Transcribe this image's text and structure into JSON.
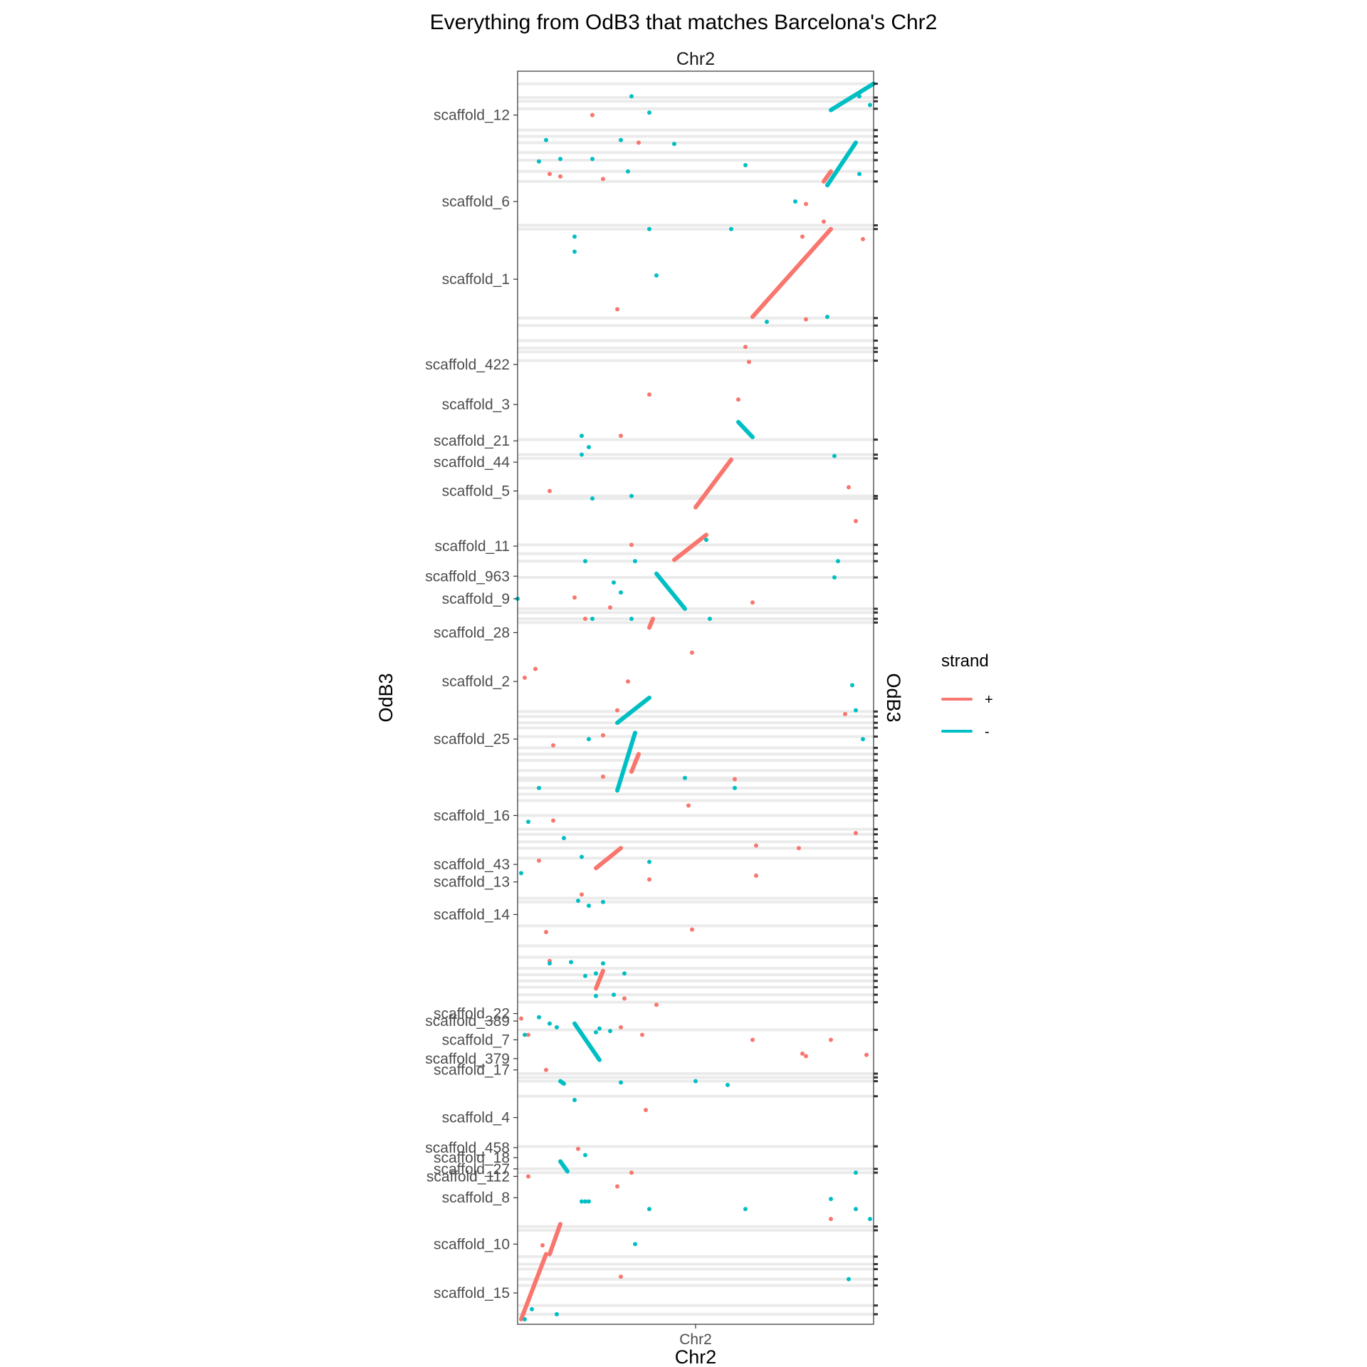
{
  "chart_data": {
    "type": "scatter",
    "title": "Everything from OdB3 that matches Barcelona's Chr2",
    "facet_label": "Chr2",
    "xlabel": "Chr2",
    "ylabel": "OdB3",
    "ylabel_secondary": "OdB3",
    "x_tick_labels": [
      "Chr2"
    ],
    "xlim": [
      0,
      1
    ],
    "ylim": [
      0,
      1
    ],
    "grid": false,
    "legend": {
      "title": "strand",
      "position": "right",
      "entries": [
        {
          "label": "+",
          "color": "#F8766D"
        },
        {
          "label": "-",
          "color": "#00BFC4"
        }
      ]
    },
    "colors": {
      "plus": "#F8766D",
      "minus": "#00BFC4",
      "band": "#EBEBEB"
    },
    "y_tick_labels": [
      {
        "label": "scaffold_12",
        "y": 0.965
      },
      {
        "label": "scaffold_6",
        "y": 0.896
      },
      {
        "label": "scaffold_1",
        "y": 0.834
      },
      {
        "label": "scaffold_422",
        "y": 0.766
      },
      {
        "label": "scaffold_3",
        "y": 0.734
      },
      {
        "label": "scaffold_21",
        "y": 0.705
      },
      {
        "label": "scaffold_44",
        "y": 0.688
      },
      {
        "label": "scaffold_5",
        "y": 0.665
      },
      {
        "label": "scaffold_11",
        "y": 0.621
      },
      {
        "label": "scaffold_963",
        "y": 0.597
      },
      {
        "label": "scaffold_9",
        "y": 0.579
      },
      {
        "label": "scaffold_28",
        "y": 0.552
      },
      {
        "label": "scaffold_2",
        "y": 0.513
      },
      {
        "label": "scaffold_25",
        "y": 0.467
      },
      {
        "label": "scaffold_16",
        "y": 0.406
      },
      {
        "label": "scaffold_43",
        "y": 0.367
      },
      {
        "label": "scaffold_13",
        "y": 0.353
      },
      {
        "label": "scaffold_14",
        "y": 0.327
      },
      {
        "label": "scaffold_22",
        "y": 0.248
      },
      {
        "label": "scaffold_389",
        "y": 0.242
      },
      {
        "label": "scaffold_7",
        "y": 0.227
      },
      {
        "label": "scaffold_379",
        "y": 0.212
      },
      {
        "label": "scaffold_17",
        "y": 0.203
      },
      {
        "label": "scaffold_4",
        "y": 0.165
      },
      {
        "label": "scaffold_458",
        "y": 0.141
      },
      {
        "label": "scaffold_18",
        "y": 0.133
      },
      {
        "label": "scaffold_27",
        "y": 0.124
      },
      {
        "label": "scaffold_112",
        "y": 0.118
      },
      {
        "label": "scaffold_8",
        "y": 0.101
      },
      {
        "label": "scaffold_10",
        "y": 0.064
      },
      {
        "label": "scaffold_15",
        "y": 0.025
      }
    ],
    "bands_y": [
      0.99,
      0.979,
      0.976,
      0.97,
      0.953,
      0.948,
      0.943,
      0.935,
      0.929,
      0.92,
      0.912,
      0.877,
      0.874,
      0.803,
      0.797,
      0.785,
      0.779,
      0.776,
      0.769,
      0.706,
      0.694,
      0.691,
      0.661,
      0.659,
      0.622,
      0.615,
      0.609,
      0.596,
      0.571,
      0.568,
      0.563,
      0.56,
      0.489,
      0.485,
      0.48,
      0.476,
      0.469,
      0.46,
      0.455,
      0.45,
      0.442,
      0.436,
      0.434,
      0.428,
      0.423,
      0.418,
      0.406,
      0.395,
      0.391,
      0.385,
      0.38,
      0.372,
      0.34,
      0.337,
      0.318,
      0.302,
      0.293,
      0.284,
      0.279,
      0.274,
      0.269,
      0.263,
      0.257,
      0.235,
      0.2,
      0.197,
      0.194,
      0.182,
      0.142,
      0.124,
      0.121,
      0.078,
      0.075,
      0.054,
      0.048,
      0.044,
      0.036,
      0.031,
      0.015,
      0.008
    ],
    "series": [
      {
        "name": "+",
        "color": "#F8766D",
        "segments": [
          {
            "x": [
              0.66,
              0.88
            ],
            "y": [
              0.804,
              0.874
            ]
          },
          {
            "x": [
              0.5,
              0.6
            ],
            "y": [
              0.652,
              0.69
            ]
          },
          {
            "x": [
              0.44,
              0.53
            ],
            "y": [
              0.61,
              0.63
            ]
          },
          {
            "x": [
              0.37,
              0.38
            ],
            "y": [
              0.556,
              0.563
            ]
          },
          {
            "x": [
              0.32,
              0.34
            ],
            "y": [
              0.441,
              0.455
            ]
          },
          {
            "x": [
              0.22,
              0.29
            ],
            "y": [
              0.364,
              0.38
            ]
          },
          {
            "x": [
              0.22,
              0.24
            ],
            "y": [
              0.268,
              0.282
            ]
          },
          {
            "x": [
              0.01,
              0.08
            ],
            "y": [
              0.004,
              0.056
            ]
          },
          {
            "x": [
              0.09,
              0.12
            ],
            "y": [
              0.056,
              0.08
            ]
          },
          {
            "x": [
              0.86,
              0.88
            ],
            "y": [
              0.912,
              0.92
            ]
          }
        ],
        "points": [
          {
            "x": 0.21,
            "y": 0.965
          },
          {
            "x": 0.34,
            "y": 0.943
          },
          {
            "x": 0.09,
            "y": 0.918
          },
          {
            "x": 0.12,
            "y": 0.916
          },
          {
            "x": 0.24,
            "y": 0.914
          },
          {
            "x": 0.81,
            "y": 0.894
          },
          {
            "x": 0.86,
            "y": 0.88
          },
          {
            "x": 0.97,
            "y": 0.866
          },
          {
            "x": 0.8,
            "y": 0.868
          },
          {
            "x": 0.28,
            "y": 0.81
          },
          {
            "x": 0.81,
            "y": 0.802
          },
          {
            "x": 0.64,
            "y": 0.78
          },
          {
            "x": 0.65,
            "y": 0.768
          },
          {
            "x": 0.37,
            "y": 0.742
          },
          {
            "x": 0.62,
            "y": 0.738
          },
          {
            "x": 0.29,
            "y": 0.709
          },
          {
            "x": 0.93,
            "y": 0.668
          },
          {
            "x": 0.09,
            "y": 0.665
          },
          {
            "x": 0.95,
            "y": 0.641
          },
          {
            "x": 0.32,
            "y": 0.622
          },
          {
            "x": 0.16,
            "y": 0.58
          },
          {
            "x": 0.66,
            "y": 0.576
          },
          {
            "x": 0.26,
            "y": 0.572
          },
          {
            "x": 0.19,
            "y": 0.563
          },
          {
            "x": 0.49,
            "y": 0.536
          },
          {
            "x": 0.05,
            "y": 0.523
          },
          {
            "x": 0.02,
            "y": 0.516
          },
          {
            "x": 0.31,
            "y": 0.513
          },
          {
            "x": 0.28,
            "y": 0.49
          },
          {
            "x": 0.92,
            "y": 0.487
          },
          {
            "x": 0.24,
            "y": 0.47
          },
          {
            "x": 0.1,
            "y": 0.462
          },
          {
            "x": 0.24,
            "y": 0.437
          },
          {
            "x": 0.61,
            "y": 0.435
          },
          {
            "x": 0.48,
            "y": 0.414
          },
          {
            "x": 0.1,
            "y": 0.402
          },
          {
            "x": 0.67,
            "y": 0.382
          },
          {
            "x": 0.95,
            "y": 0.392
          },
          {
            "x": 0.79,
            "y": 0.38
          },
          {
            "x": 0.06,
            "y": 0.37
          },
          {
            "x": 0.67,
            "y": 0.358
          },
          {
            "x": 0.37,
            "y": 0.355
          },
          {
            "x": 0.18,
            "y": 0.343
          },
          {
            "x": 0.49,
            "y": 0.315
          },
          {
            "x": 0.08,
            "y": 0.313
          },
          {
            "x": 0.09,
            "y": 0.29
          },
          {
            "x": 0.3,
            "y": 0.26
          },
          {
            "x": 0.39,
            "y": 0.255
          },
          {
            "x": 0.01,
            "y": 0.244
          },
          {
            "x": 0.29,
            "y": 0.237
          },
          {
            "x": 0.03,
            "y": 0.231
          },
          {
            "x": 0.66,
            "y": 0.227
          },
          {
            "x": 0.88,
            "y": 0.227
          },
          {
            "x": 0.35,
            "y": 0.231
          },
          {
            "x": 0.8,
            "y": 0.216
          },
          {
            "x": 0.81,
            "y": 0.214
          },
          {
            "x": 0.98,
            "y": 0.215
          },
          {
            "x": 0.08,
            "y": 0.203
          },
          {
            "x": 0.36,
            "y": 0.171
          },
          {
            "x": 0.17,
            "y": 0.14
          },
          {
            "x": 0.03,
            "y": 0.118
          },
          {
            "x": 0.32,
            "y": 0.121
          },
          {
            "x": 0.28,
            "y": 0.11
          },
          {
            "x": 0.88,
            "y": 0.084
          },
          {
            "x": 0.29,
            "y": 0.038
          },
          {
            "x": 0.07,
            "y": 0.063
          }
        ]
      },
      {
        "name": "-",
        "color": "#00BFC4",
        "segments": [
          {
            "x": [
              0.62,
              0.66
            ],
            "y": [
              0.72,
              0.708
            ]
          },
          {
            "x": [
              0.39,
              0.47
            ],
            "y": [
              0.599,
              0.571
            ]
          },
          {
            "x": [
              0.16,
              0.23
            ],
            "y": [
              0.24,
              0.211
            ]
          },
          {
            "x": [
              0.12,
              0.13
            ],
            "y": [
              0.194,
              0.192
            ]
          },
          {
            "x": [
              0.12,
              0.14
            ],
            "y": [
              0.13,
              0.122
            ]
          },
          {
            "x": [
              0.88,
              1.0
            ],
            "y": [
              0.969,
              0.99
            ]
          },
          {
            "x": [
              0.87,
              0.95
            ],
            "y": [
              0.909,
              0.943
            ]
          },
          {
            "x": [
              0.28,
              0.33
            ],
            "y": [
              0.426,
              0.472
            ]
          },
          {
            "x": [
              0.28,
              0.37
            ],
            "y": [
              0.48,
              0.5
            ]
          }
        ],
        "points": [
          {
            "x": 0.32,
            "y": 0.98
          },
          {
            "x": 0.37,
            "y": 0.967
          },
          {
            "x": 0.08,
            "y": 0.945
          },
          {
            "x": 0.29,
            "y": 0.945
          },
          {
            "x": 0.44,
            "y": 0.942
          },
          {
            "x": 0.12,
            "y": 0.93
          },
          {
            "x": 0.21,
            "y": 0.93
          },
          {
            "x": 0.06,
            "y": 0.928
          },
          {
            "x": 0.64,
            "y": 0.925
          },
          {
            "x": 0.31,
            "y": 0.92
          },
          {
            "x": 0.78,
            "y": 0.896
          },
          {
            "x": 0.37,
            "y": 0.874
          },
          {
            "x": 0.6,
            "y": 0.874
          },
          {
            "x": 0.16,
            "y": 0.868
          },
          {
            "x": 0.16,
            "y": 0.856
          },
          {
            "x": 0.39,
            "y": 0.837
          },
          {
            "x": 0.87,
            "y": 0.804
          },
          {
            "x": 0.7,
            "y": 0.8
          },
          {
            "x": 0.18,
            "y": 0.709
          },
          {
            "x": 0.18,
            "y": 0.694
          },
          {
            "x": 0.2,
            "y": 0.7
          },
          {
            "x": 0.89,
            "y": 0.693
          },
          {
            "x": 0.32,
            "y": 0.661
          },
          {
            "x": 0.21,
            "y": 0.659
          },
          {
            "x": 0.53,
            "y": 0.626
          },
          {
            "x": 0.19,
            "y": 0.609
          },
          {
            "x": 0.33,
            "y": 0.609
          },
          {
            "x": 0.9,
            "y": 0.609
          },
          {
            "x": 0.89,
            "y": 0.596
          },
          {
            "x": 0.29,
            "y": 0.584
          },
          {
            "x": 0.27,
            "y": 0.592
          },
          {
            "x": 0.0,
            "y": 0.579
          },
          {
            "x": 0.21,
            "y": 0.563
          },
          {
            "x": 0.32,
            "y": 0.563
          },
          {
            "x": 0.54,
            "y": 0.563
          },
          {
            "x": 0.94,
            "y": 0.51
          },
          {
            "x": 0.95,
            "y": 0.49
          },
          {
            "x": 0.2,
            "y": 0.467
          },
          {
            "x": 0.97,
            "y": 0.467
          },
          {
            "x": 0.06,
            "y": 0.428
          },
          {
            "x": 0.47,
            "y": 0.436
          },
          {
            "x": 0.61,
            "y": 0.428
          },
          {
            "x": 0.03,
            "y": 0.401
          },
          {
            "x": 0.37,
            "y": 0.369
          },
          {
            "x": 0.01,
            "y": 0.36
          },
          {
            "x": 0.13,
            "y": 0.388
          },
          {
            "x": 0.18,
            "y": 0.373
          },
          {
            "x": 0.17,
            "y": 0.338
          },
          {
            "x": 0.2,
            "y": 0.334
          },
          {
            "x": 0.24,
            "y": 0.337
          },
          {
            "x": 0.09,
            "y": 0.288
          },
          {
            "x": 0.24,
            "y": 0.288
          },
          {
            "x": 0.19,
            "y": 0.278
          },
          {
            "x": 0.22,
            "y": 0.28
          },
          {
            "x": 0.3,
            "y": 0.28
          },
          {
            "x": 0.15,
            "y": 0.289
          },
          {
            "x": 0.22,
            "y": 0.262
          },
          {
            "x": 0.27,
            "y": 0.263
          },
          {
            "x": 0.06,
            "y": 0.245
          },
          {
            "x": 0.09,
            "y": 0.24
          },
          {
            "x": 0.11,
            "y": 0.237
          },
          {
            "x": 0.22,
            "y": 0.233
          },
          {
            "x": 0.23,
            "y": 0.236
          },
          {
            "x": 0.26,
            "y": 0.234
          },
          {
            "x": 0.02,
            "y": 0.231
          },
          {
            "x": 0.29,
            "y": 0.193
          },
          {
            "x": 0.5,
            "y": 0.194
          },
          {
            "x": 0.59,
            "y": 0.191
          },
          {
            "x": 0.16,
            "y": 0.179
          },
          {
            "x": 0.19,
            "y": 0.135
          },
          {
            "x": 0.95,
            "y": 0.121
          },
          {
            "x": 0.18,
            "y": 0.098
          },
          {
            "x": 0.19,
            "y": 0.098
          },
          {
            "x": 0.2,
            "y": 0.098
          },
          {
            "x": 0.37,
            "y": 0.092
          },
          {
            "x": 0.64,
            "y": 0.092
          },
          {
            "x": 0.88,
            "y": 0.1
          },
          {
            "x": 0.95,
            "y": 0.092
          },
          {
            "x": 0.99,
            "y": 0.084
          },
          {
            "x": 0.33,
            "y": 0.064
          },
          {
            "x": 0.93,
            "y": 0.036
          },
          {
            "x": 0.11,
            "y": 0.008
          },
          {
            "x": 0.04,
            "y": 0.012
          },
          {
            "x": 0.02,
            "y": 0.004
          },
          {
            "x": 0.96,
            "y": 0.98
          },
          {
            "x": 0.96,
            "y": 0.918
          },
          {
            "x": 0.99,
            "y": 0.973
          }
        ]
      }
    ]
  }
}
